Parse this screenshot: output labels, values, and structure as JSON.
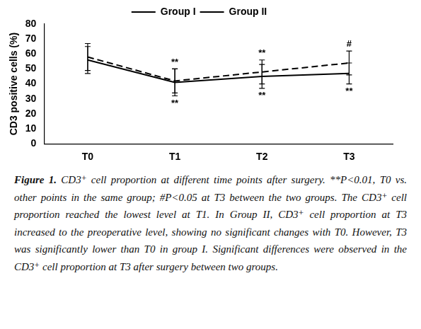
{
  "chart_data": {
    "type": "line",
    "ylabel": "CD3 positive cells (%)",
    "categories": [
      "T0",
      "T1",
      "T2",
      "T3"
    ],
    "series": [
      {
        "name": "Group I",
        "color": "#000000",
        "line_style": "solid",
        "values": [
          56,
          41,
          45,
          47
        ],
        "errors": [
          9,
          9,
          8,
          7
        ]
      },
      {
        "name": "Group II",
        "color": "#000000",
        "line_style": "dashed",
        "values": [
          58,
          42,
          48,
          54
        ],
        "errors": [
          9,
          8,
          8,
          8
        ]
      }
    ],
    "ylim": [
      0,
      80
    ],
    "yticks": [
      0,
      10,
      20,
      30,
      40,
      50,
      60,
      70,
      80
    ],
    "grid": false,
    "legend": "top",
    "marker": "none",
    "annotations": [
      {
        "text": "**",
        "category": "T1",
        "series": "Group II",
        "side": "above"
      },
      {
        "text": "**",
        "category": "T1",
        "series": "Group I",
        "side": "below"
      },
      {
        "text": "**",
        "category": "T2",
        "series": "Group II",
        "side": "above"
      },
      {
        "text": "**",
        "category": "T2",
        "series": "Group I",
        "side": "below"
      },
      {
        "text": "#",
        "category": "T3",
        "series": "Group II",
        "side": "above"
      },
      {
        "text": "**",
        "category": "T3",
        "series": "Group I",
        "side": "below"
      }
    ]
  },
  "caption": {
    "label": "Figure 1.",
    "text": "CD3⁺ cell proportion at different time points after surgery. **P<0.01, T0 vs. other points in the same group; #P<0.05 at T3 between the two groups. The CD3⁺ cell proportion reached the lowest level at T1. In Group II, CD3⁺ cell proportion at T3 increased to the preoperative level, showing no significant changes with T0. However, T3 was significantly lower than T0 in group I. Significant differences were observed in the CD3⁺ cell proportion at T3 after surgery between two groups."
  }
}
